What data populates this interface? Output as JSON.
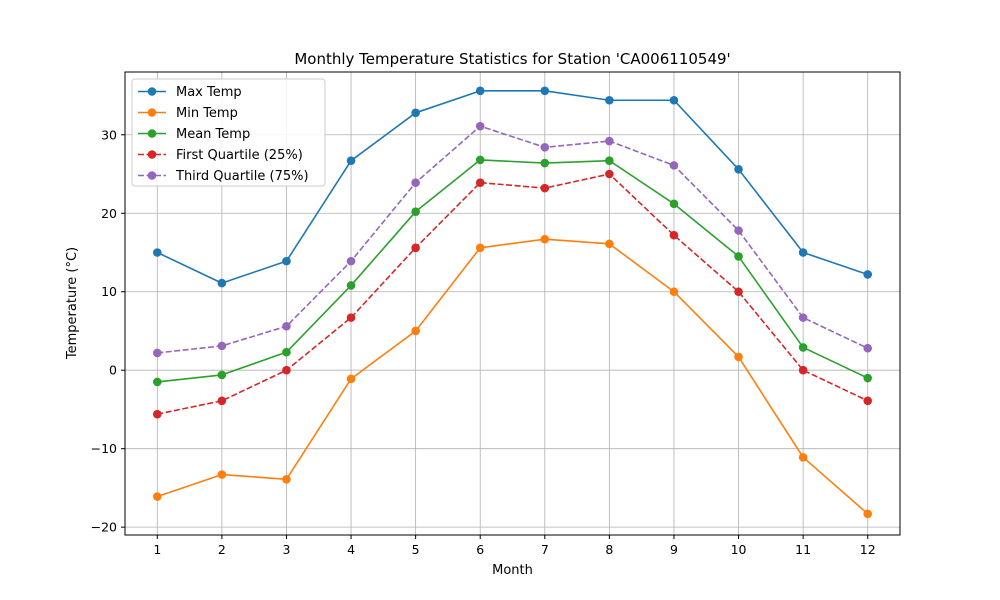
{
  "chart_data": {
    "type": "line",
    "title": "Monthly Temperature Statistics for Station 'CA006110549'",
    "xlabel": "Month",
    "ylabel": "Temperature (°C)",
    "x": [
      1,
      2,
      3,
      4,
      5,
      6,
      7,
      8,
      9,
      10,
      11,
      12
    ],
    "xlim": [
      0.5,
      12.5
    ],
    "ylim": [
      -21,
      38
    ],
    "yticks": [
      -20,
      -10,
      0,
      10,
      20,
      30
    ],
    "ytick_labels": [
      "−20",
      "−10",
      "0",
      "10",
      "20",
      "30"
    ],
    "grid": true,
    "legend_position": "top-left",
    "series": [
      {
        "name": "Max Temp",
        "color": "#1f77b4",
        "dashed": false,
        "values": [
          15.0,
          11.1,
          13.9,
          26.7,
          32.8,
          35.6,
          35.6,
          34.4,
          34.4,
          25.6,
          15.0,
          12.2
        ]
      },
      {
        "name": "Min Temp",
        "color": "#ff7f0e",
        "dashed": false,
        "values": [
          -16.1,
          -13.3,
          -13.9,
          -1.1,
          5.0,
          15.6,
          16.7,
          16.1,
          10.0,
          1.7,
          -11.1,
          -18.3
        ]
      },
      {
        "name": "Mean Temp",
        "color": "#2ca02c",
        "dashed": false,
        "values": [
          -1.5,
          -0.6,
          2.3,
          10.8,
          20.2,
          26.8,
          26.4,
          26.7,
          21.2,
          14.5,
          2.9,
          -1.0
        ]
      },
      {
        "name": "First Quartile (25%)",
        "color": "#d62728",
        "dashed": true,
        "values": [
          -5.6,
          -3.9,
          0.0,
          6.7,
          15.6,
          23.9,
          23.2,
          25.0,
          17.2,
          10.0,
          0.0,
          -3.9
        ]
      },
      {
        "name": "Third Quartile (75%)",
        "color": "#9467bd",
        "dashed": true,
        "values": [
          2.2,
          3.1,
          5.6,
          13.9,
          23.9,
          31.1,
          28.4,
          29.2,
          26.1,
          17.8,
          6.7,
          2.8
        ]
      }
    ]
  }
}
